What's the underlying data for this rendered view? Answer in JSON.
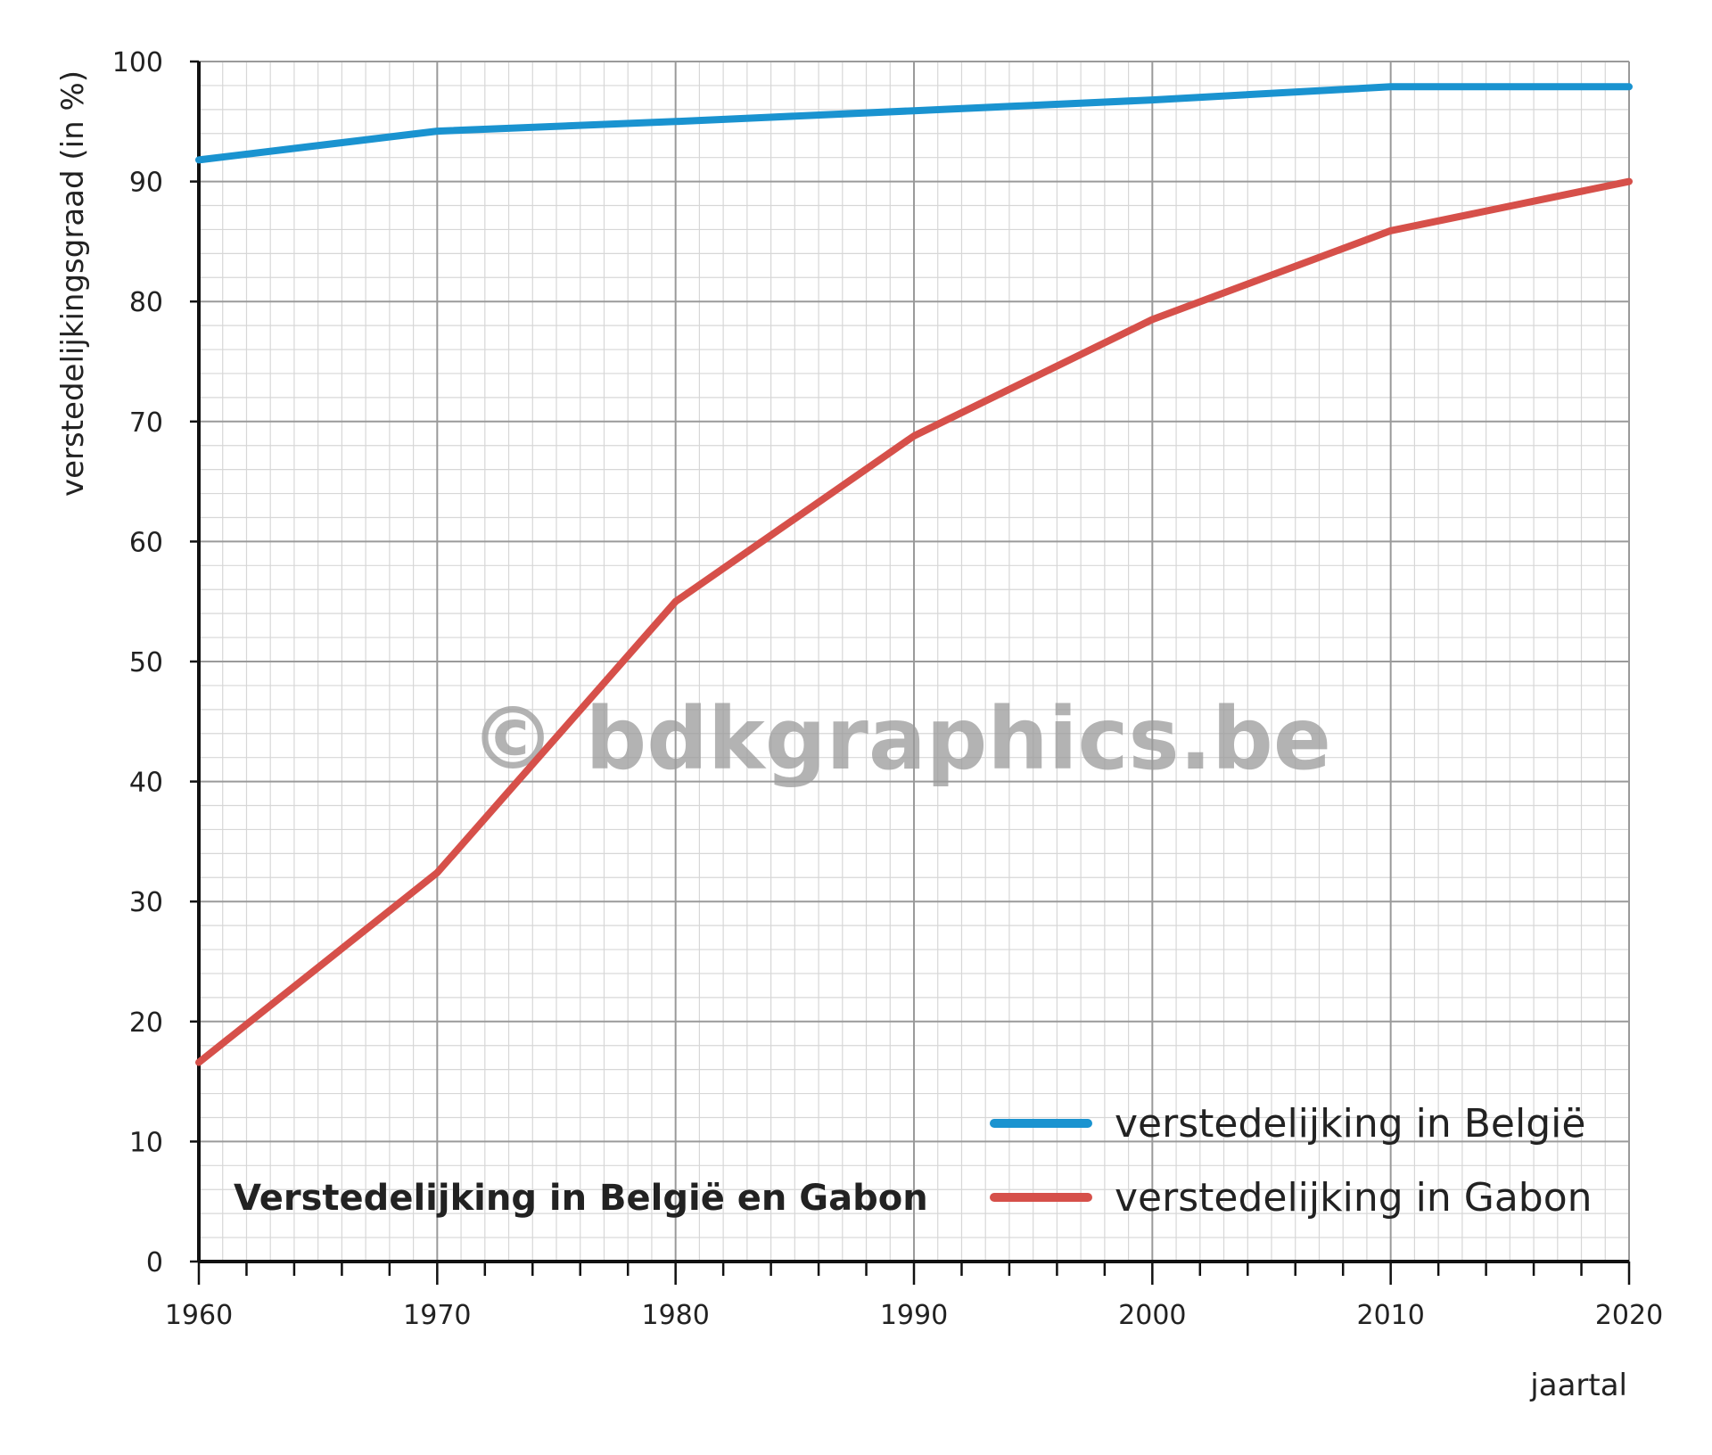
{
  "chart_data": {
    "type": "line",
    "title": "Verstedelijking in België en Gabon",
    "xlabel": "jaartal",
    "ylabel": "verstedelijkingsgraad (in %)",
    "x": [
      1960,
      1970,
      1980,
      1990,
      2000,
      2010,
      2020
    ],
    "xlim": [
      1960,
      2020
    ],
    "ylim": [
      0,
      100
    ],
    "x_ticks": [
      "1960",
      "1970",
      "1980",
      "1990",
      "2000",
      "2010",
      "2020"
    ],
    "y_ticks": [
      "0",
      "10",
      "20",
      "30",
      "40",
      "50",
      "60",
      "70",
      "80",
      "90",
      "100"
    ],
    "grid": true,
    "legend_position": "bottom-right",
    "series": [
      {
        "name": "verstedelijking in België",
        "color": "#1a93d0",
        "values": [
          91.8,
          94.2,
          95.0,
          95.9,
          96.8,
          97.9,
          97.9
        ]
      },
      {
        "name": "verstedelijking in Gabon",
        "color": "#d6504a",
        "values": [
          16.6,
          32.4,
          55.0,
          68.8,
          78.5,
          85.9,
          90.0
        ]
      }
    ]
  },
  "watermark": "© bdkgraphics.be"
}
